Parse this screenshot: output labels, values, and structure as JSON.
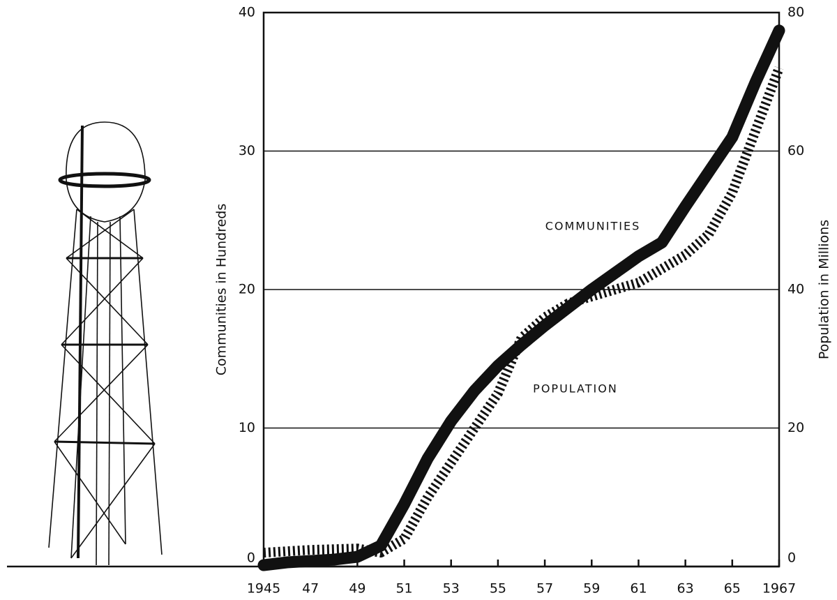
{
  "chart_data": {
    "type": "line",
    "x": [
      1945,
      1946,
      1947,
      1948,
      1949,
      1950,
      1951,
      1952,
      1953,
      1954,
      1955,
      1956,
      1957,
      1958,
      1959,
      1960,
      1961,
      1962,
      1963,
      1964,
      1965,
      1966,
      1967
    ],
    "series": [
      {
        "name": "COMMUNITIES",
        "color": "#111111",
        "axis": "y",
        "values": [
          0.1,
          0.3,
          0.4,
          0.5,
          0.7,
          1.5,
          4.5,
          7.8,
          10.5,
          12.7,
          14.5,
          16.0,
          17.4,
          18.7,
          20.0,
          21.2,
          22.4,
          23.4,
          26.0,
          28.5,
          31.0,
          35.0,
          38.7
        ]
      },
      {
        "name": "POPULATION",
        "color": "#111111",
        "axis": "y2",
        "values": [
          2,
          2.2,
          2.4,
          2.5,
          2.6,
          2,
          4,
          10,
          15,
          20,
          25,
          33,
          36,
          38,
          39,
          40,
          41,
          43,
          45,
          48,
          54,
          63,
          72
        ]
      }
    ],
    "ylabel": "Communities in Hundreds",
    "y2label": "Population in Millions",
    "xlim": [
      1945,
      1967
    ],
    "xticks": [
      {
        "value": 1945,
        "label": "1945"
      },
      {
        "value": 1947,
        "label": "47"
      },
      {
        "value": 1949,
        "label": "49"
      },
      {
        "value": 1951,
        "label": "51"
      },
      {
        "value": 1953,
        "label": "53"
      },
      {
        "value": 1955,
        "label": "55"
      },
      {
        "value": 1957,
        "label": "57"
      },
      {
        "value": 1959,
        "label": "59"
      },
      {
        "value": 1961,
        "label": "61"
      },
      {
        "value": 1963,
        "label": "63"
      },
      {
        "value": 1965,
        "label": "65"
      },
      {
        "value": 1967,
        "label": "1967"
      }
    ],
    "ylim": [
      0,
      40
    ],
    "yticks": [
      0,
      10,
      20,
      30,
      40
    ],
    "y2lim": [
      0,
      80
    ],
    "y2ticks": [
      0,
      20,
      40,
      60,
      80
    ],
    "grid": true
  }
}
